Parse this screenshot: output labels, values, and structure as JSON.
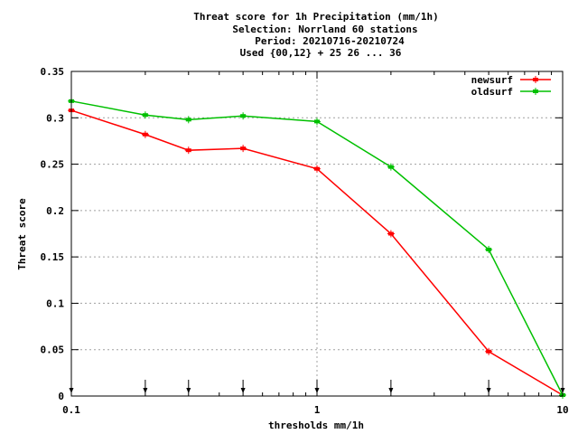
{
  "chart_data": {
    "type": "line",
    "title_lines": [
      "Threat score  for 1h Precipitation (mm/1h)",
      "Selection: Norrland     60 stations",
      "Period: 20210716-20210724",
      "Used {00,12} + 25 26 ... 36"
    ],
    "xlabel": "thresholds mm/1h",
    "ylabel": "Threat score",
    "x_scale": "log",
    "xlim": [
      0.1,
      10
    ],
    "ylim": [
      0,
      0.35
    ],
    "x_tick_labels": [
      "0.1",
      "1",
      "10"
    ],
    "x_ticks": [
      0.1,
      1,
      10
    ],
    "y_ticks": [
      0,
      0.05,
      0.1,
      0.15,
      0.2,
      0.25,
      0.3,
      0.35
    ],
    "y_tick_labels": [
      "0",
      "0.05",
      "0.1",
      "0.15",
      "0.2",
      "0.25",
      "0.3",
      "0.35"
    ],
    "grid": true,
    "legend_position": "top-right",
    "threshold_markers": [
      0.1,
      0.2,
      0.3,
      0.5,
      1,
      2,
      5,
      10
    ],
    "x": [
      0.1,
      0.2,
      0.3,
      0.5,
      1,
      2,
      5,
      10
    ],
    "series": [
      {
        "name": "newsurf",
        "color": "#ff0000",
        "values": [
          0.308,
          0.282,
          0.265,
          0.267,
          0.245,
          0.175,
          0.048,
          0.001
        ]
      },
      {
        "name": "oldsurf",
        "color": "#00c000",
        "values": [
          0.318,
          0.303,
          0.298,
          0.302,
          0.296,
          0.247,
          0.158,
          0.001
        ]
      }
    ]
  }
}
